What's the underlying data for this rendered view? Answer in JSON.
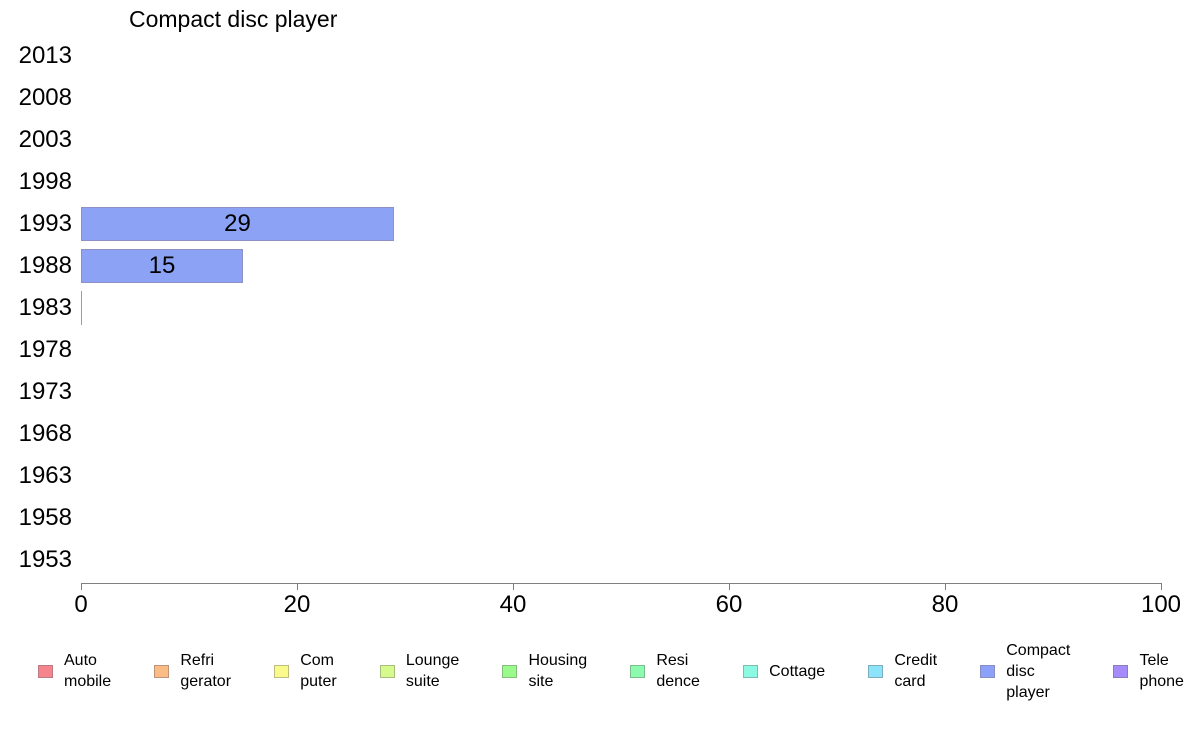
{
  "chart_data": {
    "type": "bar",
    "orientation": "horizontal",
    "title": "Compact disc player",
    "categories": [
      "2013",
      "2008",
      "2003",
      "1998",
      "1993",
      "1988",
      "1983",
      "1978",
      "1973",
      "1968",
      "1963",
      "1958",
      "1953"
    ],
    "values": [
      null,
      null,
      null,
      null,
      29,
      15,
      0,
      null,
      null,
      null,
      null,
      null,
      null
    ],
    "bar_value_labels": [
      "",
      "",
      "",
      "",
      "29",
      "15",
      "",
      "",
      "",
      "",
      "",
      "",
      ""
    ],
    "xlabel": "",
    "ylabel": "",
    "xlim": [
      0,
      100
    ],
    "x_ticks": [
      0,
      20,
      40,
      60,
      80,
      100
    ],
    "grid": false,
    "legend_position": "bottom",
    "series_color": "#8ca2f5",
    "series_border_color": "#8d90c0",
    "zero_bar_color": "#9e9e9e",
    "axis_color": "#7f7f7f",
    "legend": [
      {
        "label": "Auto\nmobile",
        "color": "#f5848c",
        "border": "#bc7a82"
      },
      {
        "label": "Refri\ngerator",
        "color": "#fabc84",
        "border": "#bd9478"
      },
      {
        "label": "Com\nputer",
        "color": "#fafa8c",
        "border": "#bdbd7e"
      },
      {
        "label": "Lounge\nsuite",
        "color": "#d7fa8c",
        "border": "#a8bd7e"
      },
      {
        "label": "Housing\nsite",
        "color": "#9afa8c",
        "border": "#84bd7c"
      },
      {
        "label": "Resi\ndence",
        "color": "#8cfaaf",
        "border": "#7cbd8c"
      },
      {
        "label": "Cottage",
        "color": "#8cfae3",
        "border": "#7cbdae"
      },
      {
        "label": "Credit\ncard",
        "color": "#8ce3fa",
        "border": "#7caebd"
      },
      {
        "label": "Compact\ndisc\nplayer",
        "color": "#8ca2fa",
        "border": "#8a8dc0"
      },
      {
        "label": "Tele\nphone",
        "color": "#a58cfa",
        "border": "#8a7cbd"
      }
    ]
  }
}
